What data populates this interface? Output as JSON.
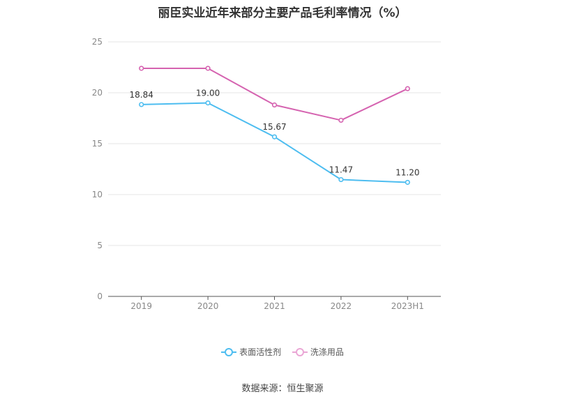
{
  "chart_data": {
    "type": "line",
    "title": "丽臣实业近年来部分主要产品毛利率情况（%）",
    "categories": [
      "2019",
      "2020",
      "2021",
      "2022",
      "2023H1"
    ],
    "y_ticks": [
      "0",
      "5",
      "10",
      "15",
      "20",
      "25"
    ],
    "ylim": [
      0,
      25
    ],
    "grid": true,
    "legend_position": "bottom",
    "series": [
      {
        "name": "表面活性剂",
        "color": "#4dbdf0",
        "values": [
          18.84,
          19.0,
          15.67,
          11.47,
          11.2
        ],
        "data_labels": [
          "18.84",
          "19.00",
          "15.67",
          "11.47",
          "11.20"
        ]
      },
      {
        "name": "洗涤用品",
        "color": "#d563b0",
        "values": [
          22.4,
          22.4,
          18.8,
          17.3,
          20.4
        ],
        "data_labels": null
      }
    ],
    "source": "数据来源：恒生聚源"
  }
}
